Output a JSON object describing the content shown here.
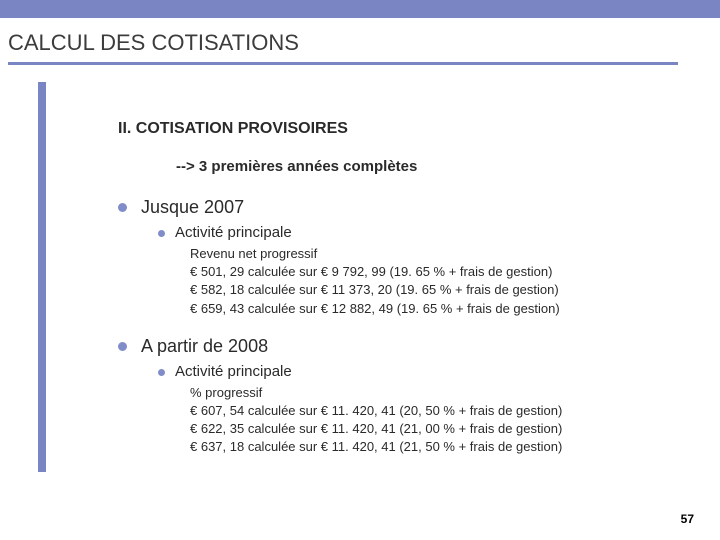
{
  "colors": {
    "accent": "#7a85c4",
    "text": "#2a2a2a",
    "background": "#ffffff"
  },
  "title": "CALCUL DES COTISATIONS",
  "subtitle": "II. COTISATION PROVISOIRES",
  "note": "--> 3 premières années complètes",
  "sections": [
    {
      "heading": "Jusque 2007",
      "sub": "Activité principale",
      "lines": [
        "Revenu net progressif",
        "€ 501, 29 calculée sur € 9 792, 99 (19. 65 % + frais de gestion)",
        "€ 582, 18 calculée sur € 11 373, 20 (19. 65 % + frais de gestion)",
        "€ 659, 43 calculée sur € 12 882, 49 (19. 65 % + frais de gestion)"
      ]
    },
    {
      "heading": "A partir de 2008",
      "sub": "Activité principale",
      "lines": [
        "% progressif",
        "€ 607, 54 calculée sur € 11. 420, 41 (20, 50 % + frais de gestion)",
        "€ 622, 35 calculée sur € 11. 420, 41 (21, 00 % + frais de gestion)",
        "€ 637, 18 calculée sur € 11. 420, 41 (21, 50 % + frais de gestion)"
      ]
    }
  ],
  "page_number": "57"
}
